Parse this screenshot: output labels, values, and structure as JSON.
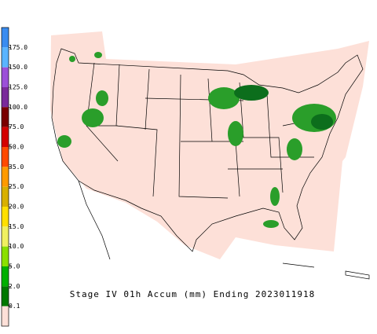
{
  "colorbar": {
    "labels": [
      "175.0",
      "150.0",
      "125.0",
      "100.0",
      "75.0",
      "50.0",
      "35.0",
      "25.0",
      "20.0",
      "15.0",
      "10.0",
      "5.0",
      "2.0",
      "0.1"
    ],
    "colors": [
      "#3a8cf0",
      "#5ab4ff",
      "#9b4fd8",
      "#7a2a9a",
      "#7a0000",
      "#d40000",
      "#ff4a00",
      "#ff9a00",
      "#d8b000",
      "#ffe000",
      "#f0f060",
      "#8ae000",
      "#00b000",
      "#007800",
      "#fde0d8"
    ]
  },
  "caption": "Stage IV 01h Accum (mm) Ending 2023011918"
}
